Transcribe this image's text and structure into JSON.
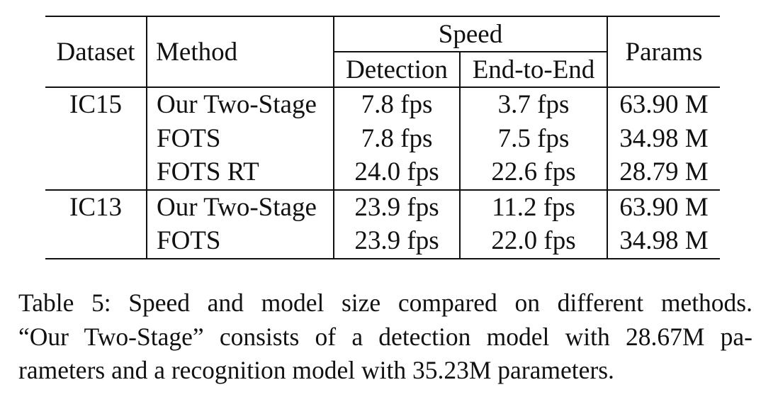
{
  "table": {
    "headers": {
      "dataset": "Dataset",
      "method": "Method",
      "speed": "Speed",
      "detection": "Detection",
      "end_to_end": "End-to-End",
      "params": "Params"
    },
    "groups": [
      {
        "dataset": "IC15",
        "rows": [
          {
            "method": "Our Two-Stage",
            "detection": "7.8 fps",
            "end_to_end": "3.7 fps",
            "params": "63.90 M"
          },
          {
            "method": "FOTS",
            "detection": "7.8 fps",
            "end_to_end": "7.5 fps",
            "params": "34.98 M"
          },
          {
            "method": "FOTS RT",
            "detection": "24.0 fps",
            "end_to_end": "22.6 fps",
            "params": "28.79 M"
          }
        ]
      },
      {
        "dataset": "IC13",
        "rows": [
          {
            "method": "Our Two-Stage",
            "detection": "23.9 fps",
            "end_to_end": "11.2 fps",
            "params": "63.90 M"
          },
          {
            "method": "FOTS",
            "detection": "23.9 fps",
            "end_to_end": "22.0 fps",
            "params": "34.98 M"
          }
        ]
      }
    ]
  },
  "caption": {
    "line1": "Table 5: Speed and model size compared on different methods.",
    "line2": "“Our Two-Stage” consists of a detection model with 28.67M pa-",
    "line3": "rameters and a recognition model with 35.23M parameters."
  }
}
